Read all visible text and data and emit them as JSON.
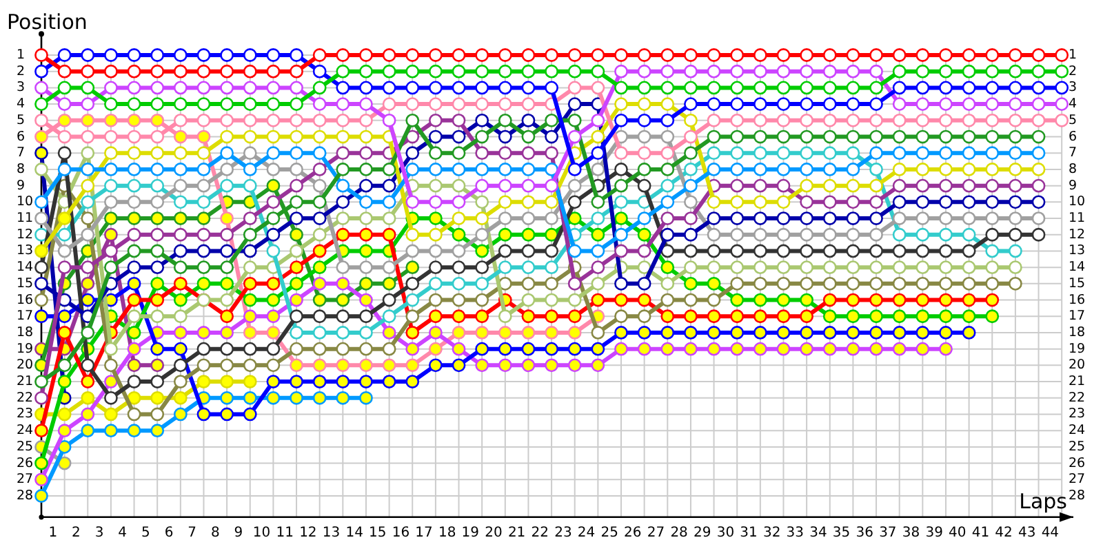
{
  "chart_data": {
    "type": "line",
    "xlabel": "Laps",
    "ylabel": "Position",
    "grid": true,
    "marker": "circle",
    "xlim": [
      0,
      44.5
    ],
    "ylim": [
      29.3,
      -0.3
    ],
    "y2lim": [
      29.3,
      -0.3
    ],
    "x": [
      0,
      1,
      2,
      3,
      4,
      5,
      6,
      7,
      8,
      9,
      10,
      11,
      12,
      13,
      14,
      15,
      16,
      17,
      18,
      19,
      20,
      21,
      22,
      23,
      24,
      25,
      26,
      27,
      28,
      29,
      30,
      31,
      32,
      33,
      34,
      35,
      36,
      37,
      38,
      39,
      40,
      41,
      42,
      43,
      44
    ],
    "xticks": [
      {
        "value": 0,
        "label": null
      },
      {
        "value": 0.5,
        "label": "1"
      },
      {
        "value": 1,
        "label": null
      },
      {
        "value": 1.5,
        "label": "2"
      },
      {
        "value": 2,
        "label": null
      },
      {
        "value": 2.5,
        "label": "3"
      },
      {
        "value": 3,
        "label": null
      },
      {
        "value": 3.5,
        "label": "4"
      },
      {
        "value": 4,
        "label": null
      },
      {
        "value": 4.5,
        "label": "5"
      },
      {
        "value": 5,
        "label": null
      },
      {
        "value": 5.5,
        "label": "6"
      },
      {
        "value": 6,
        "label": null
      },
      {
        "value": 6.5,
        "label": "7"
      },
      {
        "value": 7,
        "label": null
      },
      {
        "value": 7.5,
        "label": "8"
      },
      {
        "value": 8,
        "label": null
      },
      {
        "value": 8.5,
        "label": "9"
      },
      {
        "value": 9,
        "label": null
      },
      {
        "value": 9.5,
        "label": "10"
      },
      {
        "value": 10,
        "label": null
      },
      {
        "value": 10.5,
        "label": "11"
      },
      {
        "value": 11,
        "label": null
      },
      {
        "value": 11.5,
        "label": "12"
      },
      {
        "value": 12,
        "label": null
      },
      {
        "value": 12.5,
        "label": "13"
      },
      {
        "value": 13,
        "label": null
      },
      {
        "value": 13.5,
        "label": "14"
      },
      {
        "value": 14,
        "label": null
      },
      {
        "value": 14.5,
        "label": "15"
      },
      {
        "value": 15,
        "label": null
      },
      {
        "value": 15.5,
        "label": "16"
      },
      {
        "value": 16,
        "label": null
      },
      {
        "value": 16.5,
        "label": "17"
      },
      {
        "value": 17,
        "label": null
      },
      {
        "value": 17.5,
        "label": "18"
      },
      {
        "value": 18,
        "label": null
      },
      {
        "value": 18.5,
        "label": "19"
      },
      {
        "value": 19,
        "label": null
      },
      {
        "value": 19.5,
        "label": "20"
      },
      {
        "value": 20,
        "label": null
      },
      {
        "value": 20.5,
        "label": "21"
      },
      {
        "value": 21,
        "label": null
      },
      {
        "value": 21.5,
        "label": "22"
      },
      {
        "value": 22,
        "label": null
      },
      {
        "value": 22.5,
        "label": "23"
      },
      {
        "value": 23,
        "label": null
      },
      {
        "value": 23.5,
        "label": "24"
      },
      {
        "value": 24,
        "label": null
      },
      {
        "value": 24.5,
        "label": "25"
      },
      {
        "value": 25,
        "label": null
      },
      {
        "value": 25.5,
        "label": "26"
      },
      {
        "value": 26,
        "label": null
      },
      {
        "value": 26.5,
        "label": "27"
      },
      {
        "value": 27,
        "label": null
      },
      {
        "value": 27.5,
        "label": "28"
      },
      {
        "value": 28,
        "label": null
      },
      {
        "value": 28.5,
        "label": "29"
      },
      {
        "value": 29,
        "label": null
      },
      {
        "value": 29.5,
        "label": "30"
      },
      {
        "value": 30,
        "label": null
      },
      {
        "value": 30.5,
        "label": "31"
      },
      {
        "value": 31,
        "label": null
      },
      {
        "value": 31.5,
        "label": "32"
      },
      {
        "value": 32,
        "label": null
      },
      {
        "value": 32.5,
        "label": "33"
      },
      {
        "value": 33,
        "label": null
      },
      {
        "value": 33.5,
        "label": "34"
      },
      {
        "value": 34,
        "label": null
      },
      {
        "value": 34.5,
        "label": "35"
      },
      {
        "value": 35,
        "label": null
      },
      {
        "value": 35.5,
        "label": "36"
      },
      {
        "value": 36,
        "label": null
      },
      {
        "value": 36.5,
        "label": "37"
      },
      {
        "value": 37,
        "label": null
      },
      {
        "value": 37.5,
        "label": "38"
      },
      {
        "value": 38,
        "label": null
      },
      {
        "value": 38.5,
        "label": "39"
      },
      {
        "value": 39,
        "label": null
      },
      {
        "value": 39.5,
        "label": "40"
      },
      {
        "value": 40,
        "label": null
      },
      {
        "value": 40.5,
        "label": "41"
      },
      {
        "value": 41,
        "label": null
      },
      {
        "value": 41.5,
        "label": "42"
      },
      {
        "value": 42,
        "label": null
      },
      {
        "value": 42.5,
        "label": "43"
      },
      {
        "value": 43,
        "label": null
      },
      {
        "value": 43.5,
        "label": "44"
      },
      {
        "value": 44,
        "label": null
      }
    ],
    "yticks": [
      1,
      2,
      3,
      4,
      5,
      6,
      7,
      8,
      9,
      10,
      11,
      12,
      13,
      14,
      15,
      16,
      17,
      18,
      19,
      20,
      21,
      22,
      23,
      24,
      25,
      26,
      27,
      28
    ],
    "y2ticks": [
      1,
      2,
      3,
      4,
      5,
      6,
      7,
      8,
      9,
      10,
      11,
      12,
      13,
      14,
      15,
      16,
      17,
      18,
      19,
      20,
      21,
      22,
      23,
      24,
      25,
      26,
      27,
      28
    ],
    "series": [
      {
        "color": "#ff0000",
        "values": [
          1,
          2,
          2,
          2,
          2,
          2,
          2,
          2,
          2,
          2,
          2,
          2,
          1,
          1,
          1,
          1,
          1,
          1,
          1,
          1,
          1,
          1,
          1,
          1,
          1,
          1,
          1,
          1,
          1,
          1,
          1,
          1,
          1,
          1,
          1,
          1,
          1,
          1,
          1,
          1,
          1,
          1,
          1,
          1,
          1
        ]
      },
      {
        "color": "#00cc00",
        "values": [
          4,
          3,
          3,
          4,
          4,
          4,
          4,
          4,
          4,
          4,
          4,
          4,
          3,
          2,
          2,
          2,
          2,
          2,
          2,
          2,
          2,
          2,
          2,
          2,
          2,
          3,
          3,
          3,
          3,
          3,
          3,
          3,
          3,
          3,
          3,
          3,
          3,
          2,
          2,
          2,
          2,
          2,
          2,
          2,
          2
        ]
      },
      {
        "color": "#0000ff",
        "values": [
          2,
          1,
          1,
          1,
          1,
          1,
          1,
          1,
          1,
          1,
          1,
          1,
          2,
          3,
          3,
          3,
          3,
          3,
          3,
          3,
          3,
          3,
          3,
          8,
          7,
          5,
          5,
          5,
          4,
          4,
          4,
          4,
          4,
          4,
          4,
          4,
          4,
          3,
          3,
          3,
          3,
          3,
          3,
          3,
          3
        ]
      },
      {
        "color": "#cc44ff",
        "values": [
          3,
          4,
          4,
          3,
          3,
          3,
          3,
          3,
          3,
          3,
          3,
          3,
          4,
          4,
          4,
          5,
          10,
          10,
          10,
          9,
          9,
          9,
          9,
          6,
          5,
          2,
          2,
          2,
          2,
          2,
          2,
          2,
          2,
          2,
          2,
          2,
          2,
          4,
          4,
          4,
          4,
          4,
          4,
          4,
          4
        ]
      },
      {
        "color": "#ff88aa",
        "values": [
          5,
          6,
          6,
          6,
          6,
          6,
          5,
          5,
          5,
          5,
          5,
          5,
          5,
          5,
          5,
          4,
          4,
          4,
          4,
          4,
          4,
          4,
          4,
          3,
          3,
          7,
          7,
          7,
          6,
          5,
          5,
          5,
          5,
          5,
          5,
          5,
          5,
          5,
          5,
          5,
          5,
          5,
          5,
          5,
          5
        ]
      },
      {
        "color": "#229922",
        "values": [
          21,
          20,
          18,
          14,
          13,
          13,
          14,
          14,
          14,
          12,
          11,
          10,
          10,
          8,
          8,
          8,
          5,
          7,
          7,
          6,
          5,
          6,
          5,
          5,
          10,
          9,
          8,
          8,
          7,
          6,
          6,
          6,
          6,
          6,
          6,
          6,
          6,
          6,
          6,
          6,
          6,
          6,
          6,
          6,
          null
        ]
      },
      {
        "color": "#0099ff",
        "values": [
          10,
          8,
          8,
          8,
          8,
          8,
          8,
          8,
          7,
          8,
          7,
          7,
          7,
          9,
          10,
          10,
          8,
          8,
          8,
          8,
          8,
          8,
          8,
          13,
          13,
          12,
          11,
          10,
          9,
          8,
          8,
          8,
          8,
          8,
          8,
          8,
          7,
          7,
          7,
          7,
          7,
          7,
          7,
          7,
          null
        ]
      },
      {
        "color": "#dddd00",
        "values": [
          13,
          11,
          9,
          7,
          7,
          7,
          7,
          7,
          6,
          6,
          6,
          6,
          6,
          6,
          6,
          6,
          12,
          12,
          11,
          11,
          10,
          10,
          10,
          7,
          6,
          4,
          4,
          4,
          5,
          10,
          10,
          10,
          10,
          9,
          9,
          9,
          9,
          8,
          8,
          8,
          8,
          8,
          8,
          8,
          null
        ],
        "colors": [
          "#ffff00",
          "#ffff00",
          "#ffffff",
          "#ffffff",
          "#ffffff",
          "#ffffff",
          "#ffffff",
          "#ffffff",
          "#ffffff",
          "#ffffff",
          "#ffffff",
          "#ffffff",
          "#ffffff",
          "#ffffff",
          "#ffffff",
          "#ffffff",
          "#ffffff",
          "#ffffff",
          "#ffffff",
          "#ffffff",
          "#ffffff",
          "#ffffff",
          "#ffffff",
          "#ffffff",
          "#ffffff",
          "#ffffff",
          "#ffffff",
          "#ffffff",
          "#ffffff",
          "#ffffff",
          "#ffffff",
          "#ffffff",
          "#ffffff",
          "#ffffff",
          "#ffffff",
          "#ffffff",
          "#ffffff",
          "#ffffff",
          "#ffffff",
          "#ffffff",
          "#ffffff",
          "#ffffff",
          "#ffffff",
          "#ffffff",
          null
        ]
      },
      {
        "color": "#993399",
        "values": [
          22,
          14,
          14,
          13,
          12,
          12,
          12,
          12,
          12,
          11,
          10,
          9,
          8,
          7,
          7,
          7,
          6,
          5,
          5,
          7,
          7,
          7,
          7,
          15,
          14,
          13,
          13,
          11,
          11,
          9,
          9,
          9,
          9,
          10,
          10,
          10,
          10,
          9,
          9,
          9,
          9,
          9,
          9,
          9,
          null
        ]
      },
      {
        "color": "#0000aa",
        "values": [
          15,
          16,
          17,
          15,
          14,
          14,
          13,
          13,
          13,
          13,
          12,
          11,
          11,
          10,
          9,
          9,
          7,
          6,
          6,
          5,
          6,
          5,
          6,
          4,
          4,
          15,
          15,
          12,
          12,
          11,
          11,
          11,
          11,
          11,
          11,
          11,
          11,
          10,
          10,
          10,
          10,
          10,
          10,
          10,
          null
        ]
      },
      {
        "color": "#a0a0a0",
        "values": [
          11,
          13,
          12,
          10,
          10,
          10,
          9,
          9,
          8,
          7,
          8,
          8,
          9,
          14,
          14,
          14,
          13,
          13,
          13,
          12,
          11,
          11,
          11,
          9,
          8,
          6,
          6,
          6,
          10,
          12,
          12,
          12,
          12,
          12,
          12,
          12,
          12,
          11,
          11,
          11,
          11,
          11,
          11,
          11,
          null
        ]
      },
      {
        "color": "#333333",
        "values": [
          14,
          7,
          20,
          22,
          21,
          21,
          20,
          19,
          19,
          19,
          19,
          17,
          17,
          17,
          17,
          16,
          15,
          14,
          14,
          14,
          13,
          13,
          13,
          10,
          9,
          8,
          9,
          13,
          13,
          13,
          13,
          13,
          13,
          13,
          13,
          13,
          13,
          13,
          13,
          13,
          13,
          12,
          12,
          12,
          null
        ]
      },
      {
        "color": "#33cccc",
        "values": [
          12,
          12,
          10,
          9,
          9,
          9,
          10,
          10,
          9,
          9,
          13,
          18,
          18,
          18,
          18,
          17,
          16,
          15,
          15,
          15,
          14,
          14,
          14,
          12,
          11,
          10,
          10,
          9,
          8,
          7,
          7,
          7,
          7,
          7,
          7,
          7,
          8,
          12,
          12,
          12,
          12,
          13,
          13,
          null,
          null
        ]
      },
      {
        "color": "#aac870",
        "values": [
          8,
          10,
          7,
          19,
          17,
          17,
          17,
          16,
          16,
          14,
          14,
          13,
          12,
          11,
          11,
          11,
          9,
          9,
          9,
          10,
          17,
          16,
          16,
          16,
          15,
          14,
          14,
          15,
          14,
          14,
          14,
          14,
          14,
          14,
          14,
          14,
          14,
          14,
          14,
          14,
          14,
          14,
          14,
          null,
          null
        ]
      },
      {
        "color": "#888844",
        "values": [
          16,
          9,
          11,
          20,
          23,
          23,
          21,
          20,
          20,
          20,
          20,
          19,
          19,
          19,
          19,
          19,
          17,
          16,
          16,
          16,
          15,
          15,
          15,
          14,
          18,
          17,
          17,
          16,
          16,
          16,
          15,
          15,
          15,
          15,
          15,
          15,
          15,
          15,
          15,
          15,
          15,
          15,
          15,
          null,
          null
        ]
      },
      {
        "color": "#ff0000",
        "x": [
          0,
          1,
          2,
          3,
          4,
          5,
          6,
          7,
          8,
          9,
          10,
          11,
          12,
          13,
          14,
          15,
          16,
          17,
          18,
          19,
          20,
          21,
          22,
          23,
          24,
          25,
          26,
          27,
          28,
          29,
          30,
          31,
          32,
          33,
          34,
          35,
          36,
          37,
          38,
          39,
          40,
          41
        ],
        "values": [
          24,
          18,
          21,
          18,
          16,
          16,
          15,
          16,
          17,
          15,
          15,
          14,
          13,
          12,
          12,
          12,
          18,
          17,
          17,
          17,
          16,
          17,
          17,
          17,
          16,
          16,
          16,
          17,
          17,
          17,
          17,
          17,
          17,
          17,
          16,
          16,
          16,
          16,
          16,
          16,
          16,
          16
        ],
        "colors": [
          "#ffff00",
          "#ffff00",
          "#ffff00",
          "#ffff00",
          "#ffff00",
          "#ffff00",
          "#ffff00",
          "#ffff00",
          "#ffff00",
          "#ffff00",
          "#ffff00",
          "#ffff00",
          "#ffff00",
          "#ffff00",
          "#ffff00",
          "#ffff00",
          "#ffff00",
          "#ffff00",
          "#ffff00",
          "#ffff00",
          "#ffff00",
          "#ffff00",
          "#ffff00",
          "#ffff00",
          "#ffff00",
          "#ffff00",
          "#ffff00",
          "#ffff00",
          "#ffff00",
          "#ffff00",
          "#ffff00",
          "#ffff00",
          "#ffff00",
          "#ffff00",
          "#ffff00",
          "#ffff00",
          "#ffff00",
          "#ffff00",
          "#ffff00",
          "#ffff00",
          "#ffff00",
          "#ffff00"
        ]
      },
      {
        "color": "#00cc00",
        "x": [
          0,
          1,
          2,
          3,
          4,
          5,
          6,
          7,
          8,
          9,
          10,
          11,
          12,
          13,
          14,
          15,
          16,
          17,
          18,
          19,
          20,
          21,
          22,
          23,
          24,
          25,
          26,
          27,
          28,
          29,
          30,
          31,
          32,
          33,
          34,
          35,
          36,
          37,
          38,
          39,
          40,
          41
        ],
        "values": [
          26,
          21,
          19,
          17,
          18,
          15,
          16,
          15,
          15,
          16,
          16,
          15,
          14,
          13,
          13,
          13,
          11,
          11,
          12,
          13,
          12,
          12,
          12,
          11,
          12,
          11,
          12,
          14,
          15,
          15,
          16,
          16,
          16,
          16,
          17,
          17,
          17,
          17,
          17,
          17,
          17,
          17
        ],
        "colors": [
          "#ffff00",
          "#ffff00",
          "#ffff00",
          "#ffff00",
          "#ffff00",
          "#ffff00",
          "#ffff00",
          "#ffff00",
          "#ffff00",
          "#ffff00",
          "#ffff00",
          "#ffff00",
          "#ffff00",
          "#ffff00",
          "#ffff00",
          "#ffff00",
          "#ffff00",
          "#ffff00",
          "#ffff00",
          "#ffff00",
          "#ffff00",
          "#ffff00",
          "#ffff00",
          "#ffff00",
          "#ffff00",
          "#ffff00",
          "#ffff00",
          "#ffff00",
          "#ffff00",
          "#ffff00",
          "#ffff00",
          "#ffff00",
          "#ffff00",
          "#ffff00",
          "#ffff00",
          "#ffff00",
          "#ffff00",
          "#ffff00",
          "#ffff00",
          "#ffff00",
          "#ffff00",
          "#ffff00"
        ]
      },
      {
        "color": "#0000ff",
        "x": [
          0,
          1,
          2,
          3,
          4,
          5,
          6,
          7,
          8,
          9,
          10,
          11,
          12,
          13,
          14,
          15,
          16,
          17,
          18,
          19,
          20,
          21,
          22,
          23,
          24,
          25,
          26,
          27,
          28,
          29,
          30,
          31,
          32,
          33,
          34,
          35,
          36,
          37,
          38,
          39,
          40
        ],
        "values": [
          17,
          17,
          16,
          16,
          15,
          19,
          19,
          23,
          23,
          23,
          21,
          21,
          21,
          21,
          21,
          21,
          21,
          20,
          20,
          19,
          19,
          19,
          19,
          19,
          19,
          18,
          18,
          18,
          18,
          18,
          18,
          18,
          18,
          18,
          18,
          18,
          18,
          18,
          18,
          18,
          18
        ],
        "colors": [
          "#ffff00",
          "#ffff00",
          "#ffff00",
          "#ffff00",
          "#ffff00",
          "#ffff00",
          "#ffff00",
          "#ffff00",
          "#ffff00",
          "#ffff00",
          "#ffff00",
          "#ffff00",
          "#ffff00",
          "#ffff00",
          "#ffff00",
          "#ffff00",
          "#ffff00",
          "#ffff00",
          "#ffff00",
          "#ffff00",
          "#ffff00",
          "#ffff00",
          "#ffff00",
          "#ffff00",
          "#ffff00",
          "#ffff00",
          "#ffff00",
          "#ffff00",
          "#ffff00",
          "#ffff00",
          "#ffff00",
          "#ffff00",
          "#ffff00",
          "#ffff00",
          "#ffff00",
          "#ffff00",
          "#ffff00",
          "#ffff00",
          "#ffff00",
          "#ffff00",
          "#ffff00"
        ]
      },
      {
        "color": "#cc44ff",
        "x": [
          0,
          1,
          2,
          3,
          4,
          5,
          6,
          7,
          8,
          9,
          10,
          11,
          12,
          13,
          14,
          15,
          16,
          17,
          18,
          19,
          20,
          21,
          22,
          23,
          24,
          25,
          26,
          27,
          28,
          29,
          30,
          31,
          32,
          33,
          34,
          35,
          36,
          37,
          38,
          39
        ],
        "values": [
          27,
          24,
          23,
          21,
          19,
          18,
          18,
          18,
          18,
          17,
          17,
          16,
          15,
          15,
          16,
          18,
          19,
          18,
          19,
          20,
          20,
          20,
          20,
          20,
          20,
          19,
          19,
          19,
          19,
          19,
          19,
          19,
          19,
          19,
          19,
          19,
          19,
          19,
          19,
          19
        ],
        "colors": [
          "#ffff00",
          "#ffff00",
          "#ffff00",
          "#ffff00",
          "#ffff00",
          "#ffff00",
          "#ffff00",
          "#ffff00",
          "#ffff00",
          "#ffff00",
          "#ffff00",
          "#ffff00",
          "#ffff00",
          "#ffff00",
          "#ffff00",
          "#ffff00",
          "#ffff00",
          "#ffff00",
          "#ffff00",
          "#ffff00",
          "#ffff00",
          "#ffff00",
          "#ffff00",
          "#ffff00",
          "#ffff00",
          "#ffff00",
          "#ffff00",
          "#ffff00",
          "#ffff00",
          "#ffff00",
          "#ffff00",
          "#ffff00",
          "#ffff00",
          "#ffff00",
          "#ffff00",
          "#ffff00",
          "#ffff00",
          "#ffff00",
          "#ffff00",
          "#ffff00"
        ]
      },
      {
        "color": "#ff88aa",
        "x": [
          0,
          1,
          2,
          3,
          4,
          5,
          6,
          7,
          8,
          9,
          10,
          11,
          12,
          13,
          14,
          15,
          16,
          17,
          18,
          19,
          20,
          21,
          22,
          23,
          24
        ],
        "values": [
          6,
          5,
          5,
          5,
          5,
          5,
          6,
          6,
          11,
          18,
          18,
          20,
          20,
          20,
          20,
          20,
          20,
          19,
          18,
          18,
          18,
          18,
          18,
          18,
          17
        ],
        "colors": [
          "#ffff00",
          "#ffff00",
          "#ffff00",
          "#ffff00",
          "#ffff00",
          "#ffff00",
          "#ffff00",
          "#ffff00",
          "#ffff00",
          "#ffff00",
          "#ffff00",
          "#ffff00",
          "#ffff00",
          "#ffff00",
          "#ffff00",
          "#ffff00",
          "#ffff00",
          "#ffff00",
          "#ffff00",
          "#ffff00",
          "#ffff00",
          "#ffff00",
          "#ffff00",
          "#ffff00",
          "#ffff00"
        ]
      },
      {
        "color": "#229922",
        "x": [
          0,
          1,
          2,
          3,
          4,
          5,
          6,
          7,
          8,
          9,
          10,
          11,
          12,
          13,
          14,
          15,
          16
        ],
        "values": [
          20,
          15,
          13,
          11,
          11,
          11,
          11,
          11,
          10,
          10,
          9,
          12,
          16,
          16,
          15,
          15,
          14
        ],
        "colors": [
          "#ffff00",
          "#ffff00",
          "#ffff00",
          "#ffff00",
          "#ffff00",
          "#ffff00",
          "#ffff00",
          "#ffff00",
          "#ffff00",
          "#ffff00",
          "#ffff00",
          "#ffff00",
          "#ffff00",
          "#ffff00",
          "#ffff00",
          "#ffff00",
          "#ffff00"
        ]
      },
      {
        "color": "#0099ff",
        "x": [
          0,
          1,
          2,
          3,
          4,
          5,
          6,
          7,
          8,
          9,
          10,
          11,
          12,
          13,
          14
        ],
        "values": [
          28,
          25,
          24,
          24,
          24,
          24,
          23,
          22,
          22,
          22,
          22,
          22,
          22,
          22,
          22
        ],
        "colors": [
          "#ffff00",
          "#ffff00",
          "#ffff00",
          "#ffff00",
          "#ffff00",
          "#ffff00",
          "#ffff00",
          "#ffff00",
          "#ffff00",
          "#ffff00",
          "#ffff00",
          "#ffff00",
          "#ffff00",
          "#ffff00",
          "#ffff00"
        ]
      },
      {
        "color": "#dddd00",
        "x": [
          0,
          1,
          2,
          3,
          4,
          5,
          6,
          7,
          8,
          9
        ],
        "values": [
          23,
          23,
          22,
          23,
          22,
          22,
          22,
          21,
          21,
          21
        ],
        "colors": [
          "#ffff00",
          "#ffff00",
          "#ffff00",
          "#ffff00",
          "#ffff00",
          "#ffff00",
          "#ffff00",
          "#ffff00",
          "#ffff00",
          "#ffff00"
        ]
      },
      {
        "color": "#993399",
        "x": [
          0,
          1,
          2,
          3,
          4,
          5
        ],
        "values": [
          19,
          19,
          15,
          12,
          20,
          20
        ],
        "colors": [
          "#ffff00",
          "#ffff00",
          "#ffff00",
          "#ffff00",
          "#ffff00",
          "#ffff00"
        ]
      },
      {
        "color": "#a0a0a0",
        "x": [
          0,
          1
        ],
        "values": [
          25,
          26
        ],
        "colors": [
          "#ffff00",
          "#ffff00"
        ]
      },
      {
        "color": "#0000aa",
        "x": [
          0,
          1
        ],
        "values": [
          7,
          22
        ],
        "colors": [
          "#ffff00",
          "#ffff00"
        ]
      }
    ]
  }
}
